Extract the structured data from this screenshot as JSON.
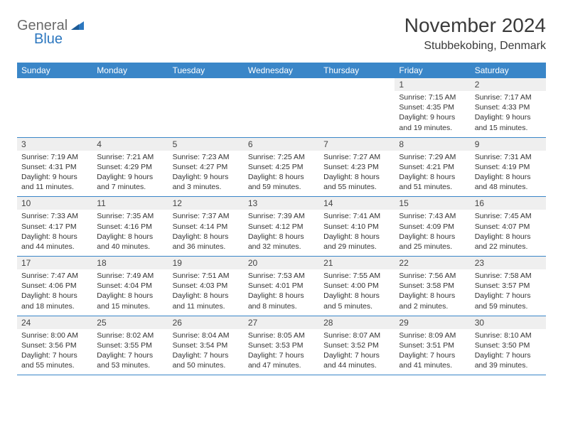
{
  "logo": {
    "word1": "General",
    "word2": "Blue"
  },
  "title": "November 2024",
  "location": "Stubbekobing, Denmark",
  "colors": {
    "header_bg": "#3a86c8",
    "header_text": "#ffffff",
    "daynum_bg": "#efefef",
    "rule": "#3a86c8",
    "logo_gray": "#6a6a6a",
    "logo_blue": "#2c77bf"
  },
  "day_labels": [
    "Sunday",
    "Monday",
    "Tuesday",
    "Wednesday",
    "Thursday",
    "Friday",
    "Saturday"
  ],
  "weeks": [
    [
      {
        "n": "",
        "sr": "",
        "ss": "",
        "dl": ""
      },
      {
        "n": "",
        "sr": "",
        "ss": "",
        "dl": ""
      },
      {
        "n": "",
        "sr": "",
        "ss": "",
        "dl": ""
      },
      {
        "n": "",
        "sr": "",
        "ss": "",
        "dl": ""
      },
      {
        "n": "",
        "sr": "",
        "ss": "",
        "dl": ""
      },
      {
        "n": "1",
        "sr": "Sunrise: 7:15 AM",
        "ss": "Sunset: 4:35 PM",
        "dl": "Daylight: 9 hours and 19 minutes."
      },
      {
        "n": "2",
        "sr": "Sunrise: 7:17 AM",
        "ss": "Sunset: 4:33 PM",
        "dl": "Daylight: 9 hours and 15 minutes."
      }
    ],
    [
      {
        "n": "3",
        "sr": "Sunrise: 7:19 AM",
        "ss": "Sunset: 4:31 PM",
        "dl": "Daylight: 9 hours and 11 minutes."
      },
      {
        "n": "4",
        "sr": "Sunrise: 7:21 AM",
        "ss": "Sunset: 4:29 PM",
        "dl": "Daylight: 9 hours and 7 minutes."
      },
      {
        "n": "5",
        "sr": "Sunrise: 7:23 AM",
        "ss": "Sunset: 4:27 PM",
        "dl": "Daylight: 9 hours and 3 minutes."
      },
      {
        "n": "6",
        "sr": "Sunrise: 7:25 AM",
        "ss": "Sunset: 4:25 PM",
        "dl": "Daylight: 8 hours and 59 minutes."
      },
      {
        "n": "7",
        "sr": "Sunrise: 7:27 AM",
        "ss": "Sunset: 4:23 PM",
        "dl": "Daylight: 8 hours and 55 minutes."
      },
      {
        "n": "8",
        "sr": "Sunrise: 7:29 AM",
        "ss": "Sunset: 4:21 PM",
        "dl": "Daylight: 8 hours and 51 minutes."
      },
      {
        "n": "9",
        "sr": "Sunrise: 7:31 AM",
        "ss": "Sunset: 4:19 PM",
        "dl": "Daylight: 8 hours and 48 minutes."
      }
    ],
    [
      {
        "n": "10",
        "sr": "Sunrise: 7:33 AM",
        "ss": "Sunset: 4:17 PM",
        "dl": "Daylight: 8 hours and 44 minutes."
      },
      {
        "n": "11",
        "sr": "Sunrise: 7:35 AM",
        "ss": "Sunset: 4:16 PM",
        "dl": "Daylight: 8 hours and 40 minutes."
      },
      {
        "n": "12",
        "sr": "Sunrise: 7:37 AM",
        "ss": "Sunset: 4:14 PM",
        "dl": "Daylight: 8 hours and 36 minutes."
      },
      {
        "n": "13",
        "sr": "Sunrise: 7:39 AM",
        "ss": "Sunset: 4:12 PM",
        "dl": "Daylight: 8 hours and 32 minutes."
      },
      {
        "n": "14",
        "sr": "Sunrise: 7:41 AM",
        "ss": "Sunset: 4:10 PM",
        "dl": "Daylight: 8 hours and 29 minutes."
      },
      {
        "n": "15",
        "sr": "Sunrise: 7:43 AM",
        "ss": "Sunset: 4:09 PM",
        "dl": "Daylight: 8 hours and 25 minutes."
      },
      {
        "n": "16",
        "sr": "Sunrise: 7:45 AM",
        "ss": "Sunset: 4:07 PM",
        "dl": "Daylight: 8 hours and 22 minutes."
      }
    ],
    [
      {
        "n": "17",
        "sr": "Sunrise: 7:47 AM",
        "ss": "Sunset: 4:06 PM",
        "dl": "Daylight: 8 hours and 18 minutes."
      },
      {
        "n": "18",
        "sr": "Sunrise: 7:49 AM",
        "ss": "Sunset: 4:04 PM",
        "dl": "Daylight: 8 hours and 15 minutes."
      },
      {
        "n": "19",
        "sr": "Sunrise: 7:51 AM",
        "ss": "Sunset: 4:03 PM",
        "dl": "Daylight: 8 hours and 11 minutes."
      },
      {
        "n": "20",
        "sr": "Sunrise: 7:53 AM",
        "ss": "Sunset: 4:01 PM",
        "dl": "Daylight: 8 hours and 8 minutes."
      },
      {
        "n": "21",
        "sr": "Sunrise: 7:55 AM",
        "ss": "Sunset: 4:00 PM",
        "dl": "Daylight: 8 hours and 5 minutes."
      },
      {
        "n": "22",
        "sr": "Sunrise: 7:56 AM",
        "ss": "Sunset: 3:58 PM",
        "dl": "Daylight: 8 hours and 2 minutes."
      },
      {
        "n": "23",
        "sr": "Sunrise: 7:58 AM",
        "ss": "Sunset: 3:57 PM",
        "dl": "Daylight: 7 hours and 59 minutes."
      }
    ],
    [
      {
        "n": "24",
        "sr": "Sunrise: 8:00 AM",
        "ss": "Sunset: 3:56 PM",
        "dl": "Daylight: 7 hours and 55 minutes."
      },
      {
        "n": "25",
        "sr": "Sunrise: 8:02 AM",
        "ss": "Sunset: 3:55 PM",
        "dl": "Daylight: 7 hours and 53 minutes."
      },
      {
        "n": "26",
        "sr": "Sunrise: 8:04 AM",
        "ss": "Sunset: 3:54 PM",
        "dl": "Daylight: 7 hours and 50 minutes."
      },
      {
        "n": "27",
        "sr": "Sunrise: 8:05 AM",
        "ss": "Sunset: 3:53 PM",
        "dl": "Daylight: 7 hours and 47 minutes."
      },
      {
        "n": "28",
        "sr": "Sunrise: 8:07 AM",
        "ss": "Sunset: 3:52 PM",
        "dl": "Daylight: 7 hours and 44 minutes."
      },
      {
        "n": "29",
        "sr": "Sunrise: 8:09 AM",
        "ss": "Sunset: 3:51 PM",
        "dl": "Daylight: 7 hours and 41 minutes."
      },
      {
        "n": "30",
        "sr": "Sunrise: 8:10 AM",
        "ss": "Sunset: 3:50 PM",
        "dl": "Daylight: 7 hours and 39 minutes."
      }
    ]
  ]
}
